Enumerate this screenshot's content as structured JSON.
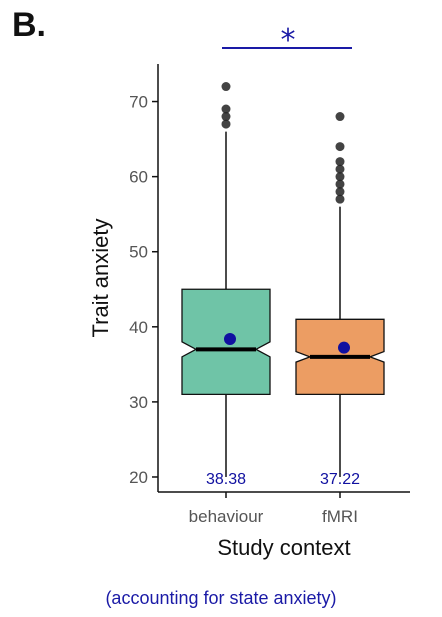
{
  "panel_label": "B.",
  "note": "(accounting for state anxiety)",
  "colors": {
    "behaviour_fill": "#6fc4a7",
    "fmri_fill": "#ec9d63",
    "mean_marker": "#1010a0",
    "significance": "#1a1aa6",
    "outlier": "#222222"
  },
  "chart_data": {
    "type": "box",
    "title": "",
    "xlabel": "Study context",
    "ylabel": "Trait anxiety",
    "ylim": [
      18,
      75
    ],
    "yticks": [
      20,
      30,
      40,
      50,
      60,
      70
    ],
    "grid": false,
    "notched": true,
    "categories": [
      "behaviour",
      "fMRI"
    ],
    "boxes": [
      {
        "category": "behaviour",
        "min": 20,
        "q1": 31,
        "median": 37,
        "q3": 45,
        "max": 66,
        "mean": 38.38,
        "mean_label": "38.38",
        "notch_low": 36,
        "notch_high": 38,
        "outliers": [
          67,
          68,
          69,
          72
        ]
      },
      {
        "category": "fMRI",
        "min": 20,
        "q1": 31,
        "median": 36,
        "q3": 41,
        "max": 56,
        "mean": 37.22,
        "mean_label": "37.22",
        "notch_low": 35.3,
        "notch_high": 36.7,
        "outliers": [
          57,
          58,
          59,
          60,
          61,
          62,
          64,
          68
        ]
      }
    ],
    "significance": {
      "between": [
        "behaviour",
        "fMRI"
      ],
      "label": "*"
    }
  }
}
